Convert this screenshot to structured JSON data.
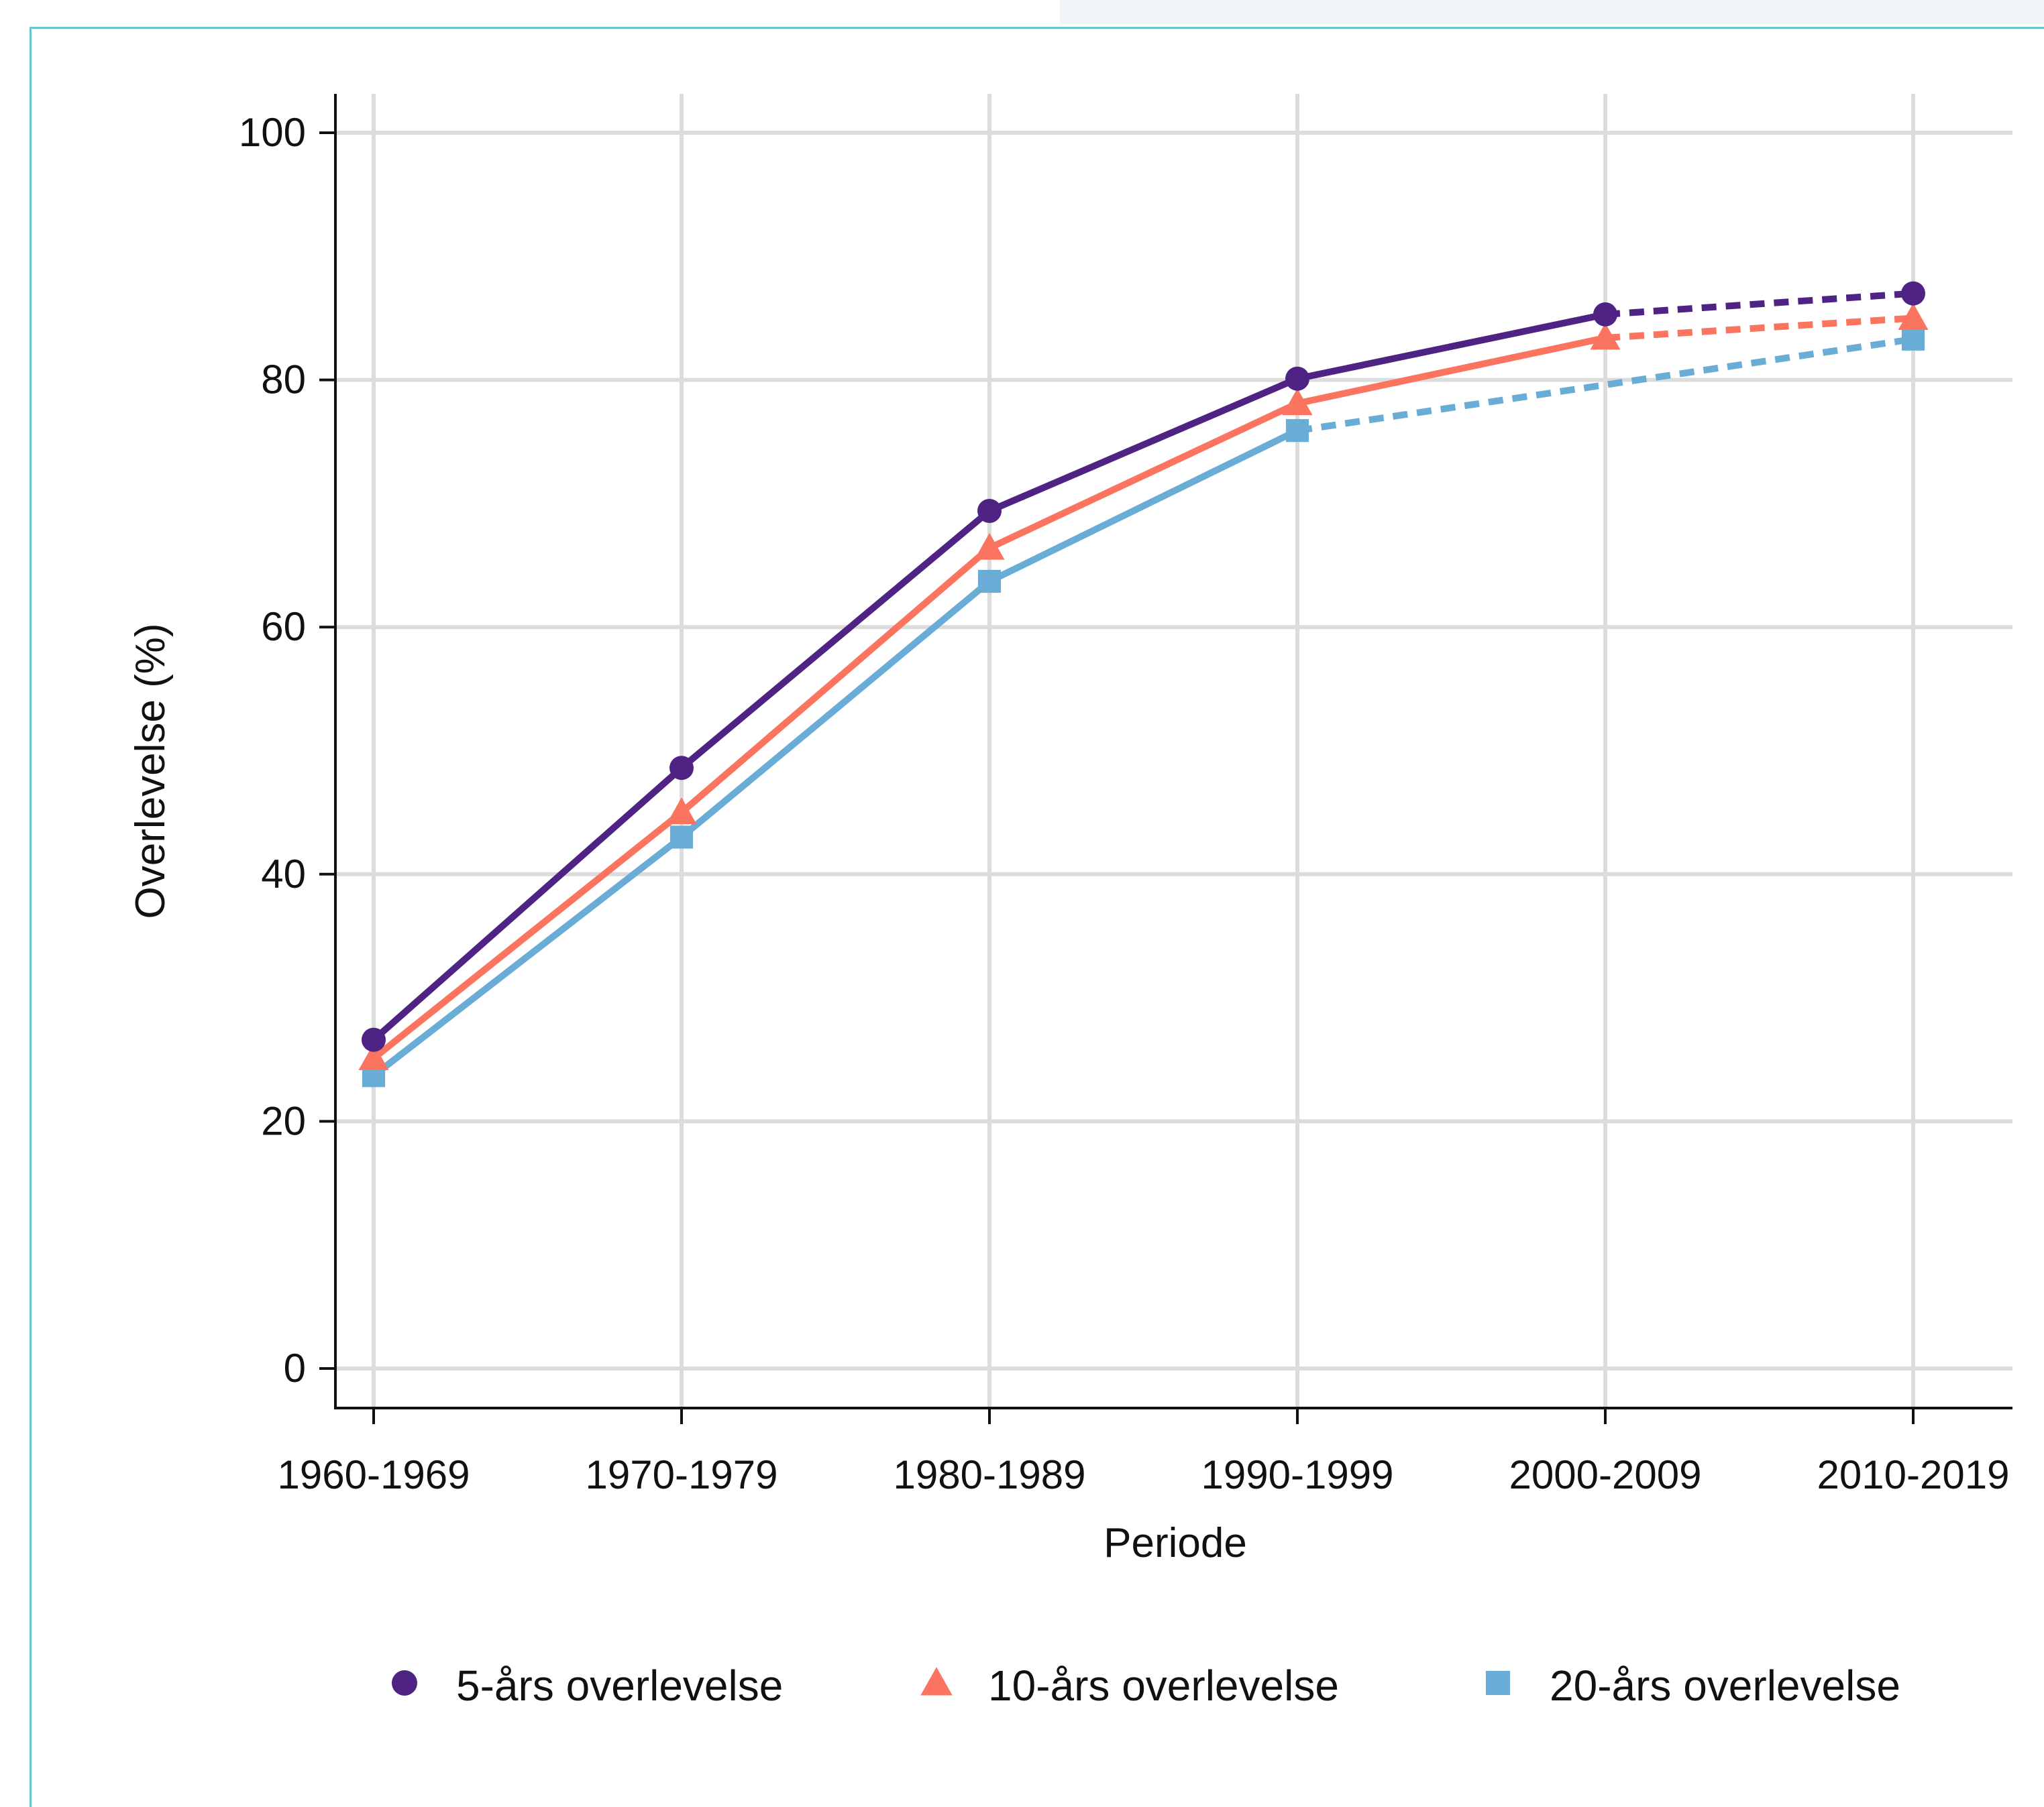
{
  "chart_data": {
    "type": "line",
    "xlabel": "Periode",
    "ylabel": "Overlevelse (%)",
    "categories": [
      "1960-1969",
      "1970-1979",
      "1980-1989",
      "1990-1999",
      "2000-2009",
      "2010-2019"
    ],
    "ylim": [
      -3,
      103
    ],
    "yticks": [
      0,
      20,
      40,
      60,
      80,
      100
    ],
    "grid": true,
    "legend_position": "bottom",
    "series": [
      {
        "name": "5-års overlevelse",
        "color": "#4f2384",
        "marker": "circle",
        "values": [
          26.6,
          48.6,
          69.4,
          80.1,
          85.3,
          87.0
        ],
        "dashed_from_index": 4
      },
      {
        "name": "10-års overlevelse",
        "color": "#fb7460",
        "marker": "triangle",
        "values": [
          25.1,
          45.0,
          66.4,
          78.1,
          83.4,
          85.0
        ],
        "dashed_from_index": 4
      },
      {
        "name": "20-års overlevelse",
        "color": "#69acd6",
        "marker": "square",
        "values": [
          23.7,
          43.0,
          63.7,
          75.9,
          null,
          83.3
        ],
        "dashed_from_index": 3,
        "dashed_via": [
          [
            4,
            79.6
          ]
        ]
      }
    ]
  }
}
